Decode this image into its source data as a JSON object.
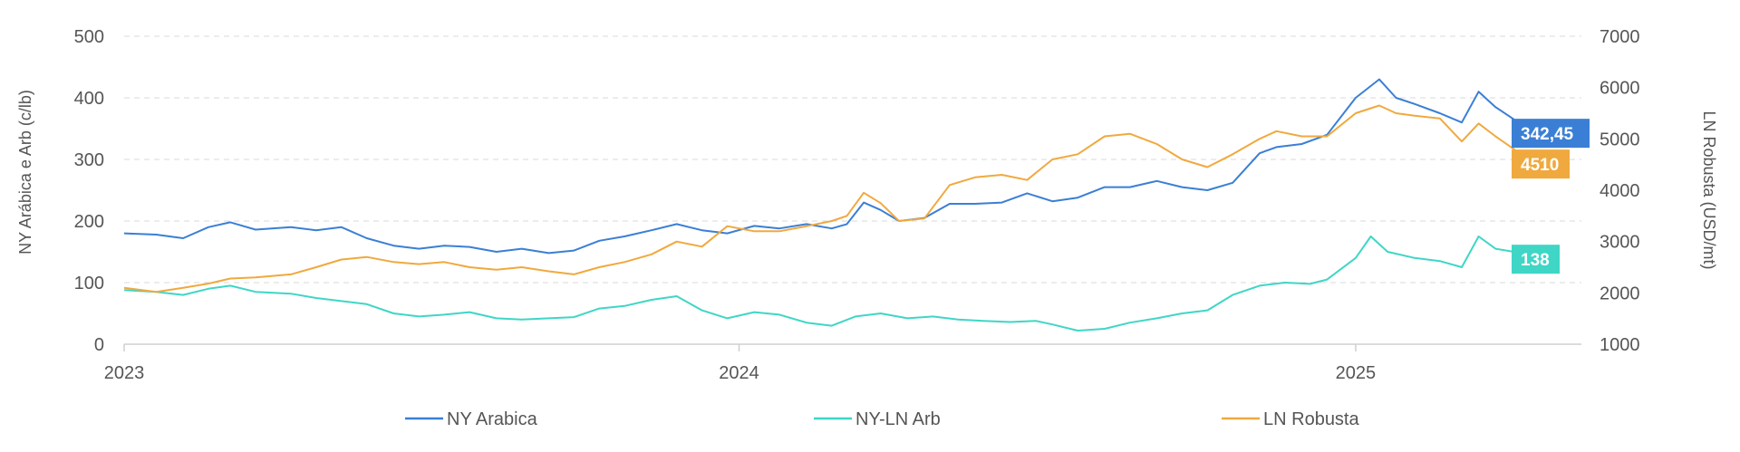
{
  "chart_data": {
    "type": "line",
    "xlabel": "",
    "left_axis": {
      "label": "NY Arábica e Arb (c/lb)",
      "ticks": [
        0,
        100,
        200,
        300,
        400,
        500
      ],
      "range": [
        0,
        500
      ]
    },
    "right_axis": {
      "label": "LN Robusta (USD/mt)",
      "ticks": [
        1000,
        2000,
        3000,
        4000,
        5000,
        6000,
        7000
      ],
      "range": [
        1000,
        7000
      ]
    },
    "x_ticks": [
      "2023",
      "2024",
      "2025"
    ],
    "x_range": [
      "2023-01-01",
      "2025-05-15"
    ],
    "grid": true,
    "legend_position": "bottom",
    "series": [
      {
        "name": "NY Arabica",
        "color": "#3a7fd5",
        "axis": "left",
        "end_label": "342,45",
        "points": [
          [
            "2023-01-01",
            180
          ],
          [
            "2023-01-20",
            178
          ],
          [
            "2023-02-05",
            172
          ],
          [
            "2023-02-20",
            190
          ],
          [
            "2023-03-05",
            198
          ],
          [
            "2023-03-20",
            186
          ],
          [
            "2023-04-10",
            190
          ],
          [
            "2023-04-25",
            185
          ],
          [
            "2023-05-10",
            190
          ],
          [
            "2023-05-25",
            172
          ],
          [
            "2023-06-10",
            160
          ],
          [
            "2023-06-25",
            155
          ],
          [
            "2023-07-10",
            160
          ],
          [
            "2023-07-25",
            158
          ],
          [
            "2023-08-10",
            150
          ],
          [
            "2023-08-25",
            155
          ],
          [
            "2023-09-10",
            148
          ],
          [
            "2023-09-25",
            152
          ],
          [
            "2023-10-10",
            168
          ],
          [
            "2023-10-25",
            175
          ],
          [
            "2023-11-10",
            185
          ],
          [
            "2023-11-25",
            195
          ],
          [
            "2023-12-10",
            185
          ],
          [
            "2023-12-25",
            180
          ],
          [
            "2024-01-10",
            192
          ],
          [
            "2024-01-25",
            188
          ],
          [
            "2024-02-10",
            195
          ],
          [
            "2024-02-25",
            188
          ],
          [
            "2024-03-05",
            195
          ],
          [
            "2024-03-15",
            230
          ],
          [
            "2024-03-25",
            218
          ],
          [
            "2024-04-05",
            200
          ],
          [
            "2024-04-20",
            205
          ],
          [
            "2024-05-05",
            228
          ],
          [
            "2024-05-20",
            228
          ],
          [
            "2024-06-05",
            230
          ],
          [
            "2024-06-20",
            245
          ],
          [
            "2024-07-05",
            232
          ],
          [
            "2024-07-20",
            238
          ],
          [
            "2024-08-05",
            255
          ],
          [
            "2024-08-20",
            255
          ],
          [
            "2024-09-05",
            265
          ],
          [
            "2024-09-20",
            255
          ],
          [
            "2024-10-05",
            250
          ],
          [
            "2024-10-20",
            262
          ],
          [
            "2024-11-05",
            310
          ],
          [
            "2024-11-15",
            320
          ],
          [
            "2024-11-30",
            325
          ],
          [
            "2024-12-15",
            340
          ],
          [
            "2025-01-01",
            400
          ],
          [
            "2025-01-15",
            430
          ],
          [
            "2025-01-25",
            400
          ],
          [
            "2025-02-05",
            390
          ],
          [
            "2025-02-20",
            375
          ],
          [
            "2025-03-05",
            360
          ],
          [
            "2025-03-15",
            410
          ],
          [
            "2025-03-25",
            385
          ],
          [
            "2025-04-05",
            365
          ],
          [
            "2025-04-15",
            342.45
          ]
        ]
      },
      {
        "name": "NY-LN Arb",
        "color": "#3fd6c6",
        "axis": "left",
        "end_label": "138",
        "points": [
          [
            "2023-01-01",
            88
          ],
          [
            "2023-01-20",
            85
          ],
          [
            "2023-02-05",
            80
          ],
          [
            "2023-02-20",
            90
          ],
          [
            "2023-03-05",
            95
          ],
          [
            "2023-03-20",
            85
          ],
          [
            "2023-04-10",
            82
          ],
          [
            "2023-04-25",
            75
          ],
          [
            "2023-05-10",
            70
          ],
          [
            "2023-05-25",
            65
          ],
          [
            "2023-06-10",
            50
          ],
          [
            "2023-06-25",
            45
          ],
          [
            "2023-07-10",
            48
          ],
          [
            "2023-07-25",
            52
          ],
          [
            "2023-08-10",
            42
          ],
          [
            "2023-08-25",
            40
          ],
          [
            "2023-09-10",
            42
          ],
          [
            "2023-09-25",
            44
          ],
          [
            "2023-10-10",
            58
          ],
          [
            "2023-10-25",
            62
          ],
          [
            "2023-11-10",
            72
          ],
          [
            "2023-11-25",
            78
          ],
          [
            "2023-12-10",
            55
          ],
          [
            "2023-12-25",
            42
          ],
          [
            "2024-01-10",
            52
          ],
          [
            "2024-01-25",
            48
          ],
          [
            "2024-02-10",
            35
          ],
          [
            "2024-02-25",
            30
          ],
          [
            "2024-03-10",
            45
          ],
          [
            "2024-03-25",
            50
          ],
          [
            "2024-04-10",
            42
          ],
          [
            "2024-04-25",
            45
          ],
          [
            "2024-05-10",
            40
          ],
          [
            "2024-05-25",
            38
          ],
          [
            "2024-06-10",
            36
          ],
          [
            "2024-06-25",
            38
          ],
          [
            "2024-07-05",
            32
          ],
          [
            "2024-07-20",
            22
          ],
          [
            "2024-08-05",
            25
          ],
          [
            "2024-08-20",
            35
          ],
          [
            "2024-09-05",
            42
          ],
          [
            "2024-09-20",
            50
          ],
          [
            "2024-10-05",
            55
          ],
          [
            "2024-10-20",
            80
          ],
          [
            "2024-11-05",
            95
          ],
          [
            "2024-11-20",
            100
          ],
          [
            "2024-12-05",
            98
          ],
          [
            "2024-12-15",
            105
          ],
          [
            "2025-01-01",
            140
          ],
          [
            "2025-01-10",
            175
          ],
          [
            "2025-01-20",
            150
          ],
          [
            "2025-02-05",
            140
          ],
          [
            "2025-02-20",
            135
          ],
          [
            "2025-03-05",
            125
          ],
          [
            "2025-03-15",
            175
          ],
          [
            "2025-03-25",
            155
          ],
          [
            "2025-04-05",
            150
          ],
          [
            "2025-04-15",
            138
          ]
        ]
      },
      {
        "name": "LN Robusta",
        "color": "#f0a93e",
        "axis": "right",
        "end_label": "4510",
        "points": [
          [
            "2023-01-01",
            2100
          ],
          [
            "2023-01-20",
            2020
          ],
          [
            "2023-02-05",
            2100
          ],
          [
            "2023-02-20",
            2180
          ],
          [
            "2023-03-05",
            2280
          ],
          [
            "2023-03-20",
            2300
          ],
          [
            "2023-04-10",
            2360
          ],
          [
            "2023-04-25",
            2500
          ],
          [
            "2023-05-10",
            2650
          ],
          [
            "2023-05-25",
            2700
          ],
          [
            "2023-06-10",
            2600
          ],
          [
            "2023-06-25",
            2560
          ],
          [
            "2023-07-10",
            2600
          ],
          [
            "2023-07-25",
            2500
          ],
          [
            "2023-08-10",
            2450
          ],
          [
            "2023-08-25",
            2500
          ],
          [
            "2023-09-10",
            2420
          ],
          [
            "2023-09-25",
            2360
          ],
          [
            "2023-10-10",
            2500
          ],
          [
            "2023-10-25",
            2600
          ],
          [
            "2023-11-10",
            2750
          ],
          [
            "2023-11-25",
            3000
          ],
          [
            "2023-12-10",
            2900
          ],
          [
            "2023-12-25",
            3300
          ],
          [
            "2024-01-10",
            3200
          ],
          [
            "2024-01-25",
            3200
          ],
          [
            "2024-02-10",
            3300
          ],
          [
            "2024-02-25",
            3400
          ],
          [
            "2024-03-05",
            3500
          ],
          [
            "2024-03-15",
            3950
          ],
          [
            "2024-03-25",
            3750
          ],
          [
            "2024-04-05",
            3400
          ],
          [
            "2024-04-20",
            3450
          ],
          [
            "2024-05-05",
            4100
          ],
          [
            "2024-05-20",
            4250
          ],
          [
            "2024-06-05",
            4300
          ],
          [
            "2024-06-20",
            4200
          ],
          [
            "2024-07-05",
            4600
          ],
          [
            "2024-07-20",
            4700
          ],
          [
            "2024-08-05",
            5050
          ],
          [
            "2024-08-20",
            5100
          ],
          [
            "2024-09-05",
            4900
          ],
          [
            "2024-09-20",
            4600
          ],
          [
            "2024-10-05",
            4450
          ],
          [
            "2024-10-20",
            4700
          ],
          [
            "2024-11-05",
            5000
          ],
          [
            "2024-11-15",
            5150
          ],
          [
            "2024-11-30",
            5050
          ],
          [
            "2024-12-15",
            5050
          ],
          [
            "2025-01-01",
            5500
          ],
          [
            "2025-01-15",
            5650
          ],
          [
            "2025-01-25",
            5500
          ],
          [
            "2025-02-05",
            5450
          ],
          [
            "2025-02-20",
            5400
          ],
          [
            "2025-03-05",
            4950
          ],
          [
            "2025-03-15",
            5300
          ],
          [
            "2025-03-25",
            5050
          ],
          [
            "2025-04-05",
            4800
          ],
          [
            "2025-04-15",
            4510
          ]
        ]
      }
    ]
  }
}
